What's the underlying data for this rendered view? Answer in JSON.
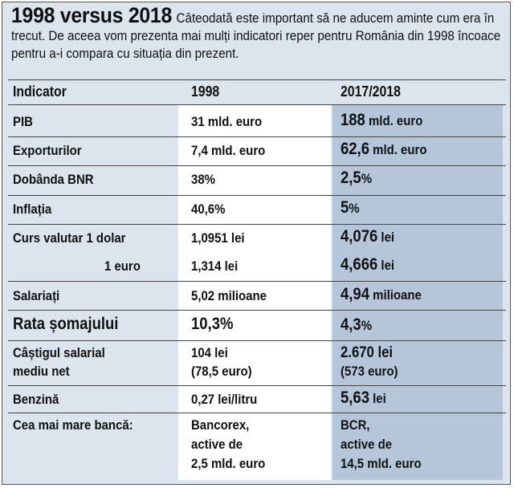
{
  "intro": {
    "title": "1998 versus 2018",
    "text": "Câteodată este important să ne aducem aminte cum era în trecut. De aceea vom prezenta mai mulți indicatori reper pentru România din 1998 încoace pentru a-i compara cu situația din prezent."
  },
  "table": {
    "headers": [
      "Indicator",
      "1998",
      "2017/2018"
    ],
    "rows": [
      {
        "label": "PIB",
        "v1998": "31 mld. euro",
        "v2018_num": "188",
        "v2018_unit": "mld. euro"
      },
      {
        "label": "Exporturilor",
        "v1998": "7,4 mld. euro",
        "v2018_num": "62,6",
        "v2018_unit": "mld. euro"
      },
      {
        "label": "Dobânda BNR",
        "v1998": "38%",
        "v2018_num": "2,5",
        "v2018_unit": "%"
      },
      {
        "label": "Inflația",
        "v1998": "40,6%",
        "v2018_num": "5",
        "v2018_unit": "%"
      },
      {
        "label": "Curs valutar 1 dolar",
        "v1998": "1,0951 lei",
        "v2018_num": "4,076",
        "v2018_unit": "lei"
      },
      {
        "label": "1 euro",
        "v1998": "1,314 lei",
        "v2018_num": "4,666",
        "v2018_unit": "lei"
      },
      {
        "label": "Salariați",
        "v1998": "5,02 milioane",
        "v2018_num": "4,94",
        "v2018_unit": "milioane"
      },
      {
        "label": "Rata șomajului",
        "v1998": "10,3%",
        "v2018_num": "4,3",
        "v2018_unit": "%"
      },
      {
        "label_l1": "Câștigul salarial",
        "label_l2": "mediu net",
        "v1998_l1": "104 lei",
        "v1998_l2": "(78,5 euro)",
        "v2018_l1": "2.670 lei",
        "v2018_l2": "(573 euro)"
      },
      {
        "label": "Benzină",
        "v1998": "0,27 lei/litru",
        "v2018_num": "5,63",
        "v2018_unit": "lei"
      },
      {
        "label": "Cea mai mare bancă:",
        "v1998_l1": "Bancorex,",
        "v1998_l2": "active de",
        "v1998_l3": "2,5 mld. euro",
        "v2018_l1": "BCR,",
        "v2018_l2": "active de",
        "v2018_l3": "14,5 mld. euro"
      }
    ]
  }
}
